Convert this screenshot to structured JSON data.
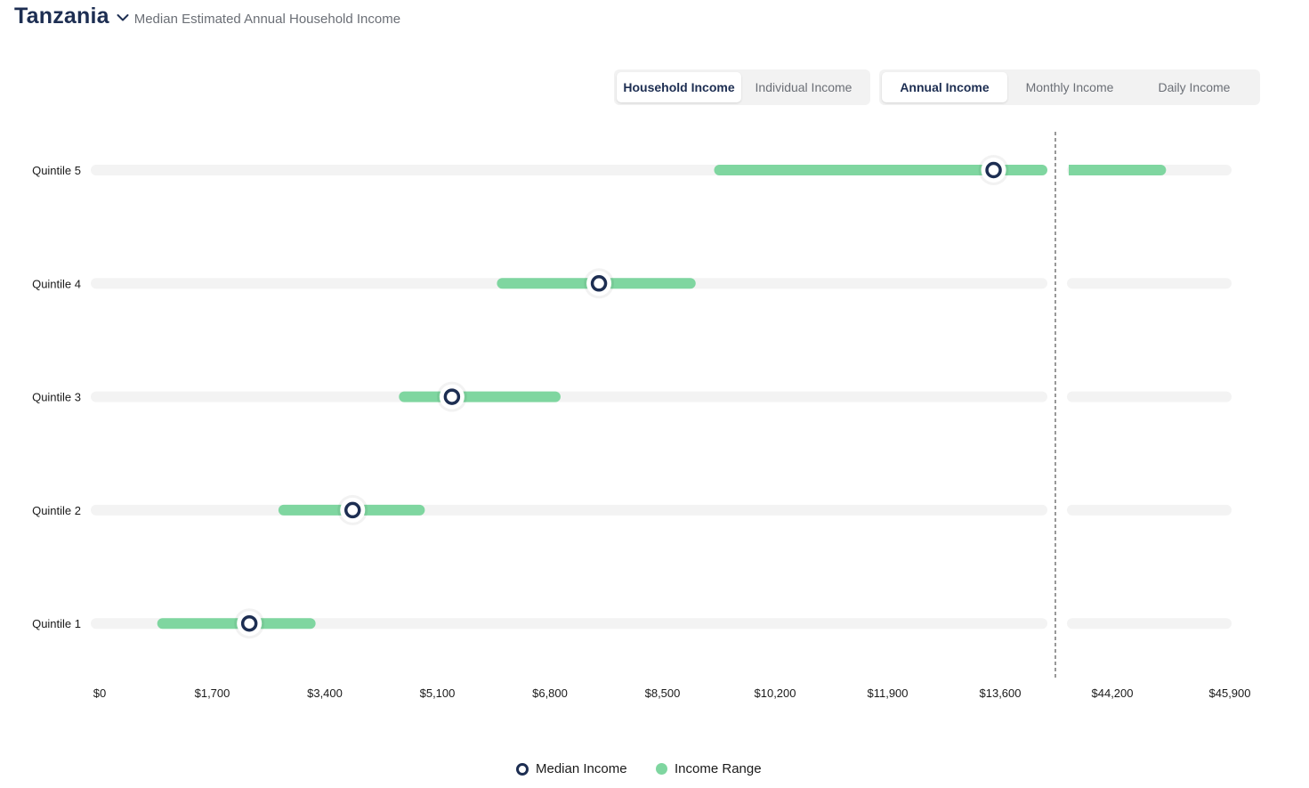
{
  "header": {
    "country": "Tanzania",
    "subtitle": "Median Estimated Annual Household Income"
  },
  "toggles": {
    "income_type": [
      {
        "label": "Household Income",
        "active": true
      },
      {
        "label": "Individual Income",
        "active": false
      }
    ],
    "period": [
      {
        "label": "Annual Income",
        "active": true
      },
      {
        "label": "Monthly Income",
        "active": false
      },
      {
        "label": "Daily Income",
        "active": false
      }
    ]
  },
  "colors": {
    "median_ring": "#1d2e52",
    "range_bar": "#7fd6a0",
    "track": "#f3f3f3",
    "axis_break_line": "#555555"
  },
  "legend": {
    "median_label": "Median Income",
    "range_label": "Income Range"
  },
  "chart_data": {
    "type": "range-dot",
    "categories": [
      "Quintile 5",
      "Quintile 4",
      "Quintile 3",
      "Quintile 2",
      "Quintile 1"
    ],
    "x_ticks_main": [
      0,
      1700,
      3400,
      5100,
      6800,
      8500,
      10200,
      11900,
      13600
    ],
    "x_ticks_break": [
      44200,
      45900
    ],
    "x_tick_labels": [
      "$0",
      "$1,700",
      "$3,400",
      "$5,100",
      "$6,800",
      "$8,500",
      "$10,200",
      "$11,900",
      "$13,600",
      "$44,200",
      "$45,900"
    ],
    "axis_break": true,
    "xlim_main": [
      0,
      14300
    ],
    "xlim_break": [
      43400,
      45900
    ],
    "series": [
      {
        "name": "Median Income",
        "values": [
          13500,
          7540,
          5320,
          3820,
          2260
        ]
      },
      {
        "name": "Income Range",
        "ranges": [
          [
            9360,
            44900
          ],
          [
            6080,
            8920
          ],
          [
            4600,
            6880
          ],
          [
            2780,
            4830
          ],
          [
            950,
            3180
          ]
        ]
      }
    ]
  }
}
